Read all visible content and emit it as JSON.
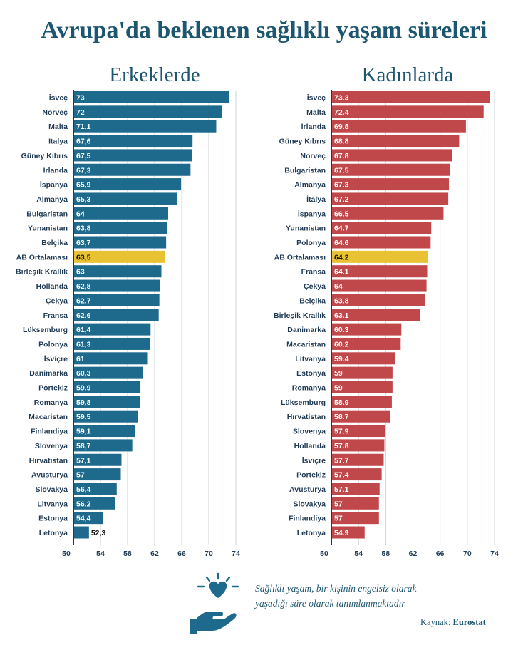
{
  "title": "Avrupa'da beklenen sağlıklı yaşam süreleri",
  "note": "Sağlıklı yaşam, bir kişinin engelsiz olarak yaşadığı süre olarak tanımlanmaktadır",
  "source_label": "Kaynak:",
  "source_name": "Eurostat",
  "icon": "heart-hand-icon",
  "colors": {
    "men": "#1d6a8d",
    "women": "#c0474a",
    "highlight": "#e8c232",
    "title": "#1d5670"
  },
  "chart_data": [
    {
      "type": "bar",
      "orientation": "horizontal",
      "title": "Erkeklerde",
      "xlim": [
        50,
        76
      ],
      "xticks": [
        50,
        54,
        58,
        62,
        66,
        70,
        74
      ],
      "highlight": "AB Ortalaması",
      "categories": [
        "İsveç",
        "Norveç",
        "Malta",
        "İtalya",
        "Güney Kıbrıs",
        "İrlanda",
        "İspanya",
        "Almanya",
        "Bulgaristan",
        "Yunanistan",
        "Belçika",
        "AB Ortalaması",
        "Birleşik Krallık",
        "Hollanda",
        "Çekya",
        "Fransa",
        "Lüksemburg",
        "Polonya",
        "İsviçre",
        "Danimarka",
        "Portekiz",
        "Romanya",
        "Macaristan",
        "Finlandiya",
        "Slovenya",
        "Hırvatistan",
        "Avusturya",
        "Slovakya",
        "Litvanya",
        "Estonya",
        "Letonya"
      ],
      "values": [
        73,
        72,
        71.1,
        67.6,
        67.5,
        67.3,
        65.9,
        65.3,
        64,
        63.8,
        63.7,
        63.5,
        63,
        62.8,
        62.7,
        62.6,
        61.4,
        61.3,
        61,
        60.3,
        59.9,
        59.8,
        59.5,
        59.1,
        58.7,
        57.1,
        57,
        56.4,
        56.2,
        54.4,
        52.3
      ],
      "value_labels": [
        "73",
        "72",
        "71,1",
        "67,6",
        "67,5",
        "67,3",
        "65,9",
        "65,3",
        "64",
        "63,8",
        "63,7",
        "63,5",
        "63",
        "62,8",
        "62,7",
        "62,6",
        "61,4",
        "61,3",
        "61",
        "60,3",
        "59,9",
        "59,8",
        "59,5",
        "59,1",
        "58,7",
        "57,1",
        "57",
        "56,4",
        "56,2",
        "54,4",
        "52,3"
      ]
    },
    {
      "type": "bar",
      "orientation": "horizontal",
      "title": "Kadınlarda",
      "xlim": [
        50,
        76
      ],
      "xticks": [
        50,
        54,
        58,
        62,
        66,
        70,
        74
      ],
      "highlight": "AB Ortalaması",
      "categories": [
        "İsveç",
        "Malta",
        "İrlanda",
        "Güney Kıbrıs",
        "Norveç",
        "Bulgaristan",
        "Almanya",
        "İtalya",
        "İspanya",
        "Yunanistan",
        "Polonya",
        "AB Ortalaması",
        "Fransa",
        "Çekya",
        "Belçika",
        "Birleşik Krallık",
        "Danimarka",
        "Macaristan",
        "Litvanya",
        "Estonya",
        "Romanya",
        "Lüksemburg",
        "Hırvatistan",
        "Slovenya",
        "Hollanda",
        "İsviçre",
        "Portekiz",
        "Avusturya",
        "Slovakya",
        "Finlandiya",
        "Letonya"
      ],
      "values": [
        73.3,
        72.4,
        69.8,
        68.8,
        67.8,
        67.5,
        67.3,
        67.2,
        66.5,
        64.7,
        64.6,
        64.2,
        64.1,
        64,
        63.8,
        63.1,
        60.3,
        60.2,
        59.4,
        59,
        59,
        58.9,
        58.7,
        57.9,
        57.8,
        57.7,
        57.4,
        57.1,
        57,
        57,
        54.9
      ],
      "value_labels": [
        "73.3",
        "72.4",
        "69.8",
        "68.8",
        "67.8",
        "67.5",
        "67.3",
        "67.2",
        "66.5",
        "64.7",
        "64.6",
        "64.2",
        "64.1",
        "64",
        "63.8",
        "63.1",
        "60.3",
        "60.2",
        "59.4",
        "59",
        "59",
        "58.9",
        "58.7",
        "57.9",
        "57.8",
        "57.7",
        "57.4",
        "57.1",
        "57",
        "57",
        "54.9"
      ]
    }
  ]
}
